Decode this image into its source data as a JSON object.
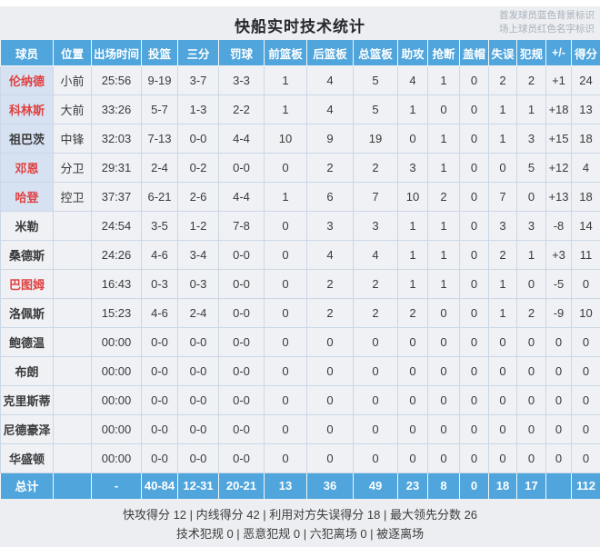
{
  "title": "快船实时技术统计",
  "legend": {
    "line1": "首发球员蓝色背景标识",
    "line2": "场上球员红色名字标识"
  },
  "table": {
    "headers": [
      "球员",
      "位置",
      "出场时间",
      "投篮",
      "三分",
      "罚球",
      "前篮板",
      "后篮板",
      "总篮板",
      "助攻",
      "抢断",
      "盖帽",
      "失误",
      "犯规",
      "+/-",
      "得分"
    ],
    "players": [
      {
        "name": "伦纳德",
        "starter": true,
        "on_court": true,
        "cells": [
          "小前",
          "25:56",
          "9-19",
          "3-7",
          "3-3",
          "1",
          "4",
          "5",
          "4",
          "1",
          "0",
          "2",
          "2",
          "+1",
          "24"
        ]
      },
      {
        "name": "科林斯",
        "starter": true,
        "on_court": true,
        "cells": [
          "大前",
          "33:26",
          "5-7",
          "1-3",
          "2-2",
          "1",
          "4",
          "5",
          "1",
          "0",
          "0",
          "1",
          "1",
          "+18",
          "13"
        ]
      },
      {
        "name": "祖巴茨",
        "starter": true,
        "on_court": false,
        "cells": [
          "中锋",
          "32:03",
          "7-13",
          "0-0",
          "4-4",
          "10",
          "9",
          "19",
          "0",
          "1",
          "0",
          "1",
          "3",
          "+15",
          "18"
        ]
      },
      {
        "name": "邓恩",
        "starter": true,
        "on_court": true,
        "cells": [
          "分卫",
          "29:31",
          "2-4",
          "0-2",
          "0-0",
          "0",
          "2",
          "2",
          "3",
          "1",
          "0",
          "0",
          "5",
          "+12",
          "4"
        ]
      },
      {
        "name": "哈登",
        "starter": true,
        "on_court": true,
        "cells": [
          "控卫",
          "37:37",
          "6-21",
          "2-6",
          "4-4",
          "1",
          "6",
          "7",
          "10",
          "2",
          "0",
          "7",
          "0",
          "+13",
          "18"
        ]
      },
      {
        "name": "米勒",
        "starter": false,
        "on_court": false,
        "cells": [
          "",
          "24:54",
          "3-5",
          "1-2",
          "7-8",
          "0",
          "3",
          "3",
          "1",
          "1",
          "0",
          "3",
          "3",
          "-8",
          "14"
        ]
      },
      {
        "name": "桑德斯",
        "starter": false,
        "on_court": false,
        "cells": [
          "",
          "24:26",
          "4-6",
          "3-4",
          "0-0",
          "0",
          "4",
          "4",
          "1",
          "1",
          "0",
          "2",
          "1",
          "+3",
          "11"
        ]
      },
      {
        "name": "巴图姆",
        "starter": false,
        "on_court": true,
        "cells": [
          "",
          "16:43",
          "0-3",
          "0-3",
          "0-0",
          "0",
          "2",
          "2",
          "1",
          "1",
          "0",
          "1",
          "0",
          "-5",
          "0"
        ]
      },
      {
        "name": "洛佩斯",
        "starter": false,
        "on_court": false,
        "cells": [
          "",
          "15:23",
          "4-6",
          "2-4",
          "0-0",
          "0",
          "2",
          "2",
          "2",
          "0",
          "0",
          "1",
          "2",
          "-9",
          "10"
        ]
      },
      {
        "name": "鲍德温",
        "starter": false,
        "on_court": false,
        "cells": [
          "",
          "00:00",
          "0-0",
          "0-0",
          "0-0",
          "0",
          "0",
          "0",
          "0",
          "0",
          "0",
          "0",
          "0",
          "0",
          "0"
        ]
      },
      {
        "name": "布朗",
        "starter": false,
        "on_court": false,
        "cells": [
          "",
          "00:00",
          "0-0",
          "0-0",
          "0-0",
          "0",
          "0",
          "0",
          "0",
          "0",
          "0",
          "0",
          "0",
          "0",
          "0"
        ]
      },
      {
        "name": "克里斯蒂",
        "starter": false,
        "on_court": false,
        "cells": [
          "",
          "00:00",
          "0-0",
          "0-0",
          "0-0",
          "0",
          "0",
          "0",
          "0",
          "0",
          "0",
          "0",
          "0",
          "0",
          "0"
        ]
      },
      {
        "name": "尼德豪泽",
        "starter": false,
        "on_court": false,
        "cells": [
          "",
          "00:00",
          "0-0",
          "0-0",
          "0-0",
          "0",
          "0",
          "0",
          "0",
          "0",
          "0",
          "0",
          "0",
          "0",
          "0"
        ]
      },
      {
        "name": "华盛顿",
        "starter": false,
        "on_court": false,
        "cells": [
          "",
          "00:00",
          "0-0",
          "0-0",
          "0-0",
          "0",
          "0",
          "0",
          "0",
          "0",
          "0",
          "0",
          "0",
          "0",
          "0"
        ]
      }
    ],
    "total": {
      "label": "总计",
      "cells": [
        "",
        "-",
        "40-84",
        "12-31",
        "20-21",
        "13",
        "36",
        "49",
        "23",
        "8",
        "0",
        "18",
        "17",
        "",
        "112"
      ]
    }
  },
  "footer": {
    "line1": "快攻得分 12 | 内线得分 42 | 利用对方失误得分 18 | 最大领先分数 26",
    "line2": "技术犯规 0 | 恶意犯规 0 | 六犯离场 0 | 被逐离场"
  },
  "colors": {
    "header_bg": "#4FA5DC",
    "total_bg": "#4FA5DC",
    "starter_name_bg": "#D6E1F2",
    "on_court_name": "#E04141",
    "grid_line": "#CBD7E6",
    "row_bg": "#EFF1F5",
    "page_bg": "#ECEEF1",
    "note_text": "#A9B1BB",
    "text": "#3A3A3A"
  }
}
